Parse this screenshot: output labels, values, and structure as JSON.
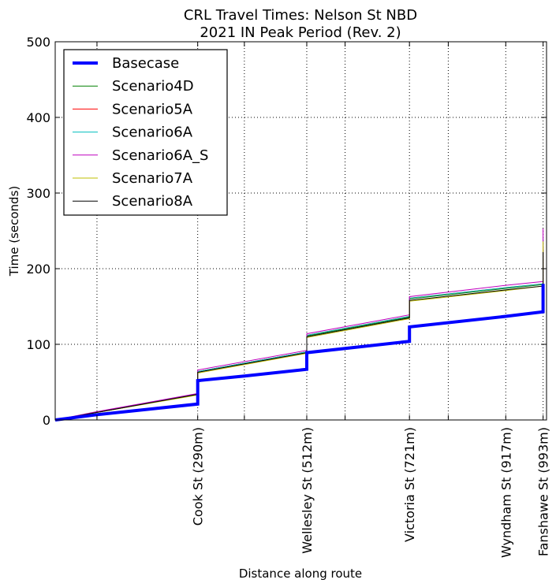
{
  "chart_data": {
    "type": "line",
    "title": "CRL Travel Times: Nelson St NBD",
    "subtitle": "2021 IN Peak Period (Rev. 2)",
    "xlabel": "Distance along route",
    "ylabel": "Time (seconds)",
    "xlim": [
      0,
      1000
    ],
    "ylim": [
      0,
      500
    ],
    "yticks": [
      0,
      100,
      200,
      300,
      400,
      500
    ],
    "ytick_labels": [
      "0",
      "100",
      "200",
      "300",
      "400",
      "500"
    ],
    "x_gridlines": [
      85,
      290,
      385,
      512,
      590,
      721,
      800,
      917,
      993
    ],
    "x_tick_labels": [
      {
        "x": 290,
        "label": "Cook St (290m)"
      },
      {
        "x": 512,
        "label": "Wellesley St (512m)"
      },
      {
        "x": 721,
        "label": "Victoria St (721m)"
      },
      {
        "x": 917,
        "label": "Wyndham St (917m)"
      },
      {
        "x": 993,
        "label": "Fanshawe St (993m)"
      }
    ],
    "grid": true,
    "legend_position": "top-left",
    "series": [
      {
        "name": "Basecase",
        "color": "#0000ff",
        "width": 4,
        "points": [
          [
            0,
            0
          ],
          [
            85,
            7
          ],
          [
            290,
            21
          ],
          [
            290,
            52
          ],
          [
            385,
            58
          ],
          [
            512,
            67
          ],
          [
            512,
            89
          ],
          [
            721,
            104
          ],
          [
            721,
            123
          ],
          [
            917,
            137
          ],
          [
            993,
            143
          ],
          [
            993,
            180
          ]
        ]
      },
      {
        "name": "Scenario4D",
        "color": "#008000",
        "width": 1,
        "points": [
          [
            0,
            0
          ],
          [
            85,
            10
          ],
          [
            290,
            34
          ],
          [
            290,
            64
          ],
          [
            512,
            90
          ],
          [
            512,
            111
          ],
          [
            721,
            136
          ],
          [
            721,
            160
          ],
          [
            917,
            174
          ],
          [
            993,
            179
          ],
          [
            993,
            225
          ]
        ]
      },
      {
        "name": "Scenario5A",
        "color": "#ff0000",
        "width": 1,
        "points": [
          [
            0,
            0
          ],
          [
            85,
            10
          ],
          [
            290,
            34
          ],
          [
            290,
            64
          ],
          [
            512,
            90
          ],
          [
            512,
            112
          ],
          [
            721,
            137
          ],
          [
            721,
            161
          ],
          [
            917,
            175
          ],
          [
            993,
            180
          ],
          [
            993,
            228
          ]
        ]
      },
      {
        "name": "Scenario6A",
        "color": "#00bfbf",
        "width": 1,
        "points": [
          [
            0,
            0
          ],
          [
            85,
            10
          ],
          [
            290,
            34
          ],
          [
            290,
            64
          ],
          [
            512,
            90
          ],
          [
            512,
            112
          ],
          [
            721,
            137
          ],
          [
            721,
            161
          ],
          [
            917,
            175
          ],
          [
            993,
            180
          ],
          [
            993,
            240
          ]
        ]
      },
      {
        "name": "Scenario6A_S",
        "color": "#bf00bf",
        "width": 1,
        "points": [
          [
            0,
            0
          ],
          [
            85,
            11
          ],
          [
            290,
            35
          ],
          [
            290,
            66
          ],
          [
            512,
            92
          ],
          [
            512,
            114
          ],
          [
            721,
            139
          ],
          [
            721,
            163
          ],
          [
            917,
            178
          ],
          [
            993,
            183
          ],
          [
            993,
            253
          ]
        ]
      },
      {
        "name": "Scenario7A",
        "color": "#bfbf00",
        "width": 1,
        "points": [
          [
            0,
            0
          ],
          [
            85,
            10
          ],
          [
            290,
            33
          ],
          [
            290,
            62
          ],
          [
            512,
            88
          ],
          [
            512,
            109
          ],
          [
            721,
            134
          ],
          [
            721,
            157
          ],
          [
            917,
            171
          ],
          [
            993,
            177
          ],
          [
            993,
            236
          ]
        ]
      },
      {
        "name": "Scenario8A",
        "color": "#000000",
        "width": 1,
        "points": [
          [
            0,
            0
          ],
          [
            85,
            10
          ],
          [
            290,
            34
          ],
          [
            290,
            63
          ],
          [
            512,
            89
          ],
          [
            512,
            110
          ],
          [
            721,
            135
          ],
          [
            721,
            158
          ],
          [
            917,
            172
          ],
          [
            993,
            177
          ],
          [
            993,
            222
          ]
        ]
      }
    ]
  }
}
